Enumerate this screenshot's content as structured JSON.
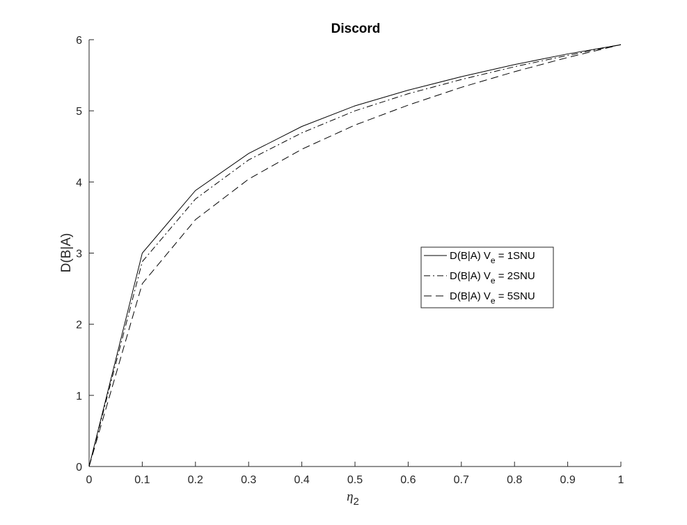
{
  "chart_data": {
    "type": "line",
    "title": "Discord",
    "xlabel": "η",
    "xlabel_sub": "2",
    "ylabel": "D(B|A)",
    "xlim": [
      0,
      1
    ],
    "ylim": [
      0,
      6
    ],
    "xticks": [
      "0",
      "0.1",
      "0.2",
      "0.3",
      "0.4",
      "0.5",
      "0.6",
      "0.7",
      "0.8",
      "0.9",
      "1"
    ],
    "yticks": [
      "0",
      "1",
      "2",
      "3",
      "4",
      "5",
      "6"
    ],
    "grid": false,
    "legend_position": "center-right",
    "x": [
      0,
      0.1,
      0.2,
      0.3,
      0.4,
      0.5,
      0.6,
      0.7,
      0.8,
      0.9,
      1
    ],
    "series": [
      {
        "name": "D(B|A) V_e = 1SNU",
        "legend_prefix": "D(B|A) V",
        "legend_sub": "e",
        "legend_suffix": " = 1SNU",
        "line_style": "solid",
        "values": [
          0,
          3.0,
          3.88,
          4.4,
          4.78,
          5.07,
          5.29,
          5.48,
          5.65,
          5.8,
          5.93
        ]
      },
      {
        "name": "D(B|A) V_e = 2SNU",
        "legend_prefix": "D(B|A) V",
        "legend_sub": "e",
        "legend_suffix": " = 2SNU",
        "line_style": "dashdot",
        "values": [
          0,
          2.88,
          3.76,
          4.31,
          4.69,
          5.0,
          5.24,
          5.44,
          5.62,
          5.78,
          5.93
        ]
      },
      {
        "name": "D(B|A) V_e = 5SNU",
        "legend_prefix": "D(B|A) V",
        "legend_sub": "e",
        "legend_suffix": " = 5SNU",
        "line_style": "dashed",
        "values": [
          0,
          2.57,
          3.47,
          4.04,
          4.46,
          4.8,
          5.08,
          5.33,
          5.55,
          5.75,
          5.93
        ]
      }
    ],
    "line_color": "#000000",
    "axis_color": "#262626"
  }
}
